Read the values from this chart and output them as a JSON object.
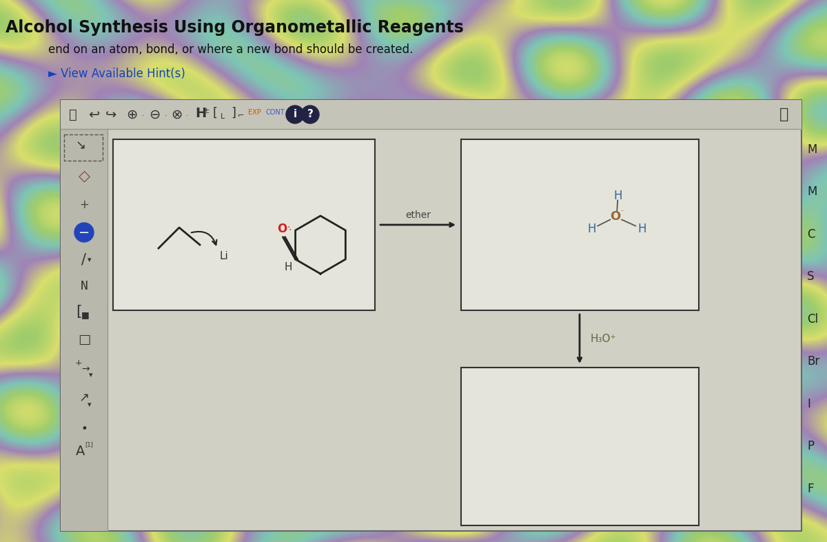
{
  "title": "Alcohol Synthesis Using Organometallic Reagents",
  "subtitle": "end on an atom, bond, or where a new bond should be created.",
  "hint_text": "► View Available Hint(s)",
  "bg_base": "#c8d4a0",
  "panel_bg": "#d8d8cc",
  "box_bg": "#e8e8de",
  "box_border": "#333333",
  "panel_border": "#666666",
  "ether_color": "#444444",
  "h3o_color": "#666644",
  "water_H_color": "#336699",
  "water_O_color": "#996633",
  "red_O_color": "#cc2222",
  "right_labels": [
    "M",
    "M",
    "C",
    "S",
    "Cl",
    "Br",
    "I",
    "P",
    "F"
  ]
}
